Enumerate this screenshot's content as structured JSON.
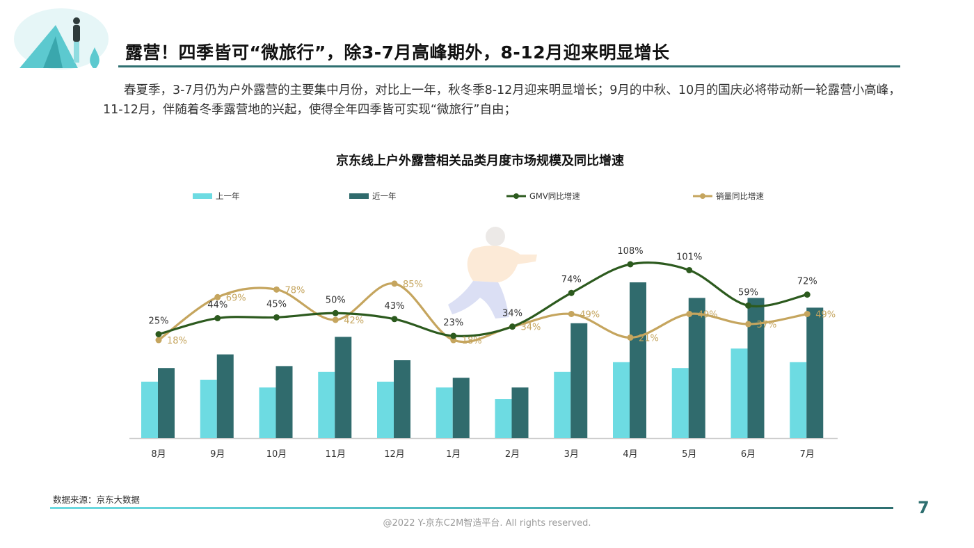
{
  "slide": {
    "title": "露营！四季皆可“微旅行”，除3-7月高峰期外，8-12月迎来明显增长",
    "intro": "春夏季，3-7月仍为户外露营的主要集中月份，对比上一年，秋冬季8-12月迎来明显增长；9月的中秋、10月的国庆必将带动新一轮露营小高峰，11-12月，伴随着冬季露营地的兴起，使得全年四季皆可实现“微旅行”自由；",
    "source": "数据来源：京东大数据",
    "page_number": "7",
    "copyright": "@2022 Y-京东C2M智造平台. All rights reserved."
  },
  "colors": {
    "prev_year": "#6ddbe2",
    "recent_year": "#306b6d",
    "gmv_line": "#2c5a1e",
    "sales_line": "#c5a55e",
    "axis": "#cccccc",
    "label_dark": "#333333"
  },
  "chart_data": {
    "type": "bar",
    "title": "京东线上户外露营相关品类月度市场规模及同比增速",
    "categories": [
      "8月",
      "9月",
      "10月",
      "11月",
      "12月",
      "1月",
      "2月",
      "3月",
      "4月",
      "5月",
      "6月",
      "7月"
    ],
    "series": [
      {
        "name": "上一年",
        "type": "bar",
        "values": [
          29,
          30,
          26,
          34,
          29,
          26,
          20,
          34,
          39,
          36,
          46,
          39
        ]
      },
      {
        "name": "近一年",
        "type": "bar",
        "values": [
          36,
          43,
          37,
          52,
          40,
          31,
          26,
          59,
          80,
          72,
          72,
          67
        ]
      },
      {
        "name": "GMV同比增速",
        "type": "line",
        "unit": "%",
        "values": [
          25,
          44,
          45,
          50,
          43,
          23,
          34,
          74,
          108,
          101,
          59,
          72
        ]
      },
      {
        "name": "销量同比增速",
        "type": "line",
        "unit": "%",
        "values": [
          18,
          69,
          78,
          42,
          85,
          18,
          34,
          49,
          21,
          49,
          37,
          49
        ]
      }
    ],
    "legend_position": "top",
    "grid": false
  }
}
